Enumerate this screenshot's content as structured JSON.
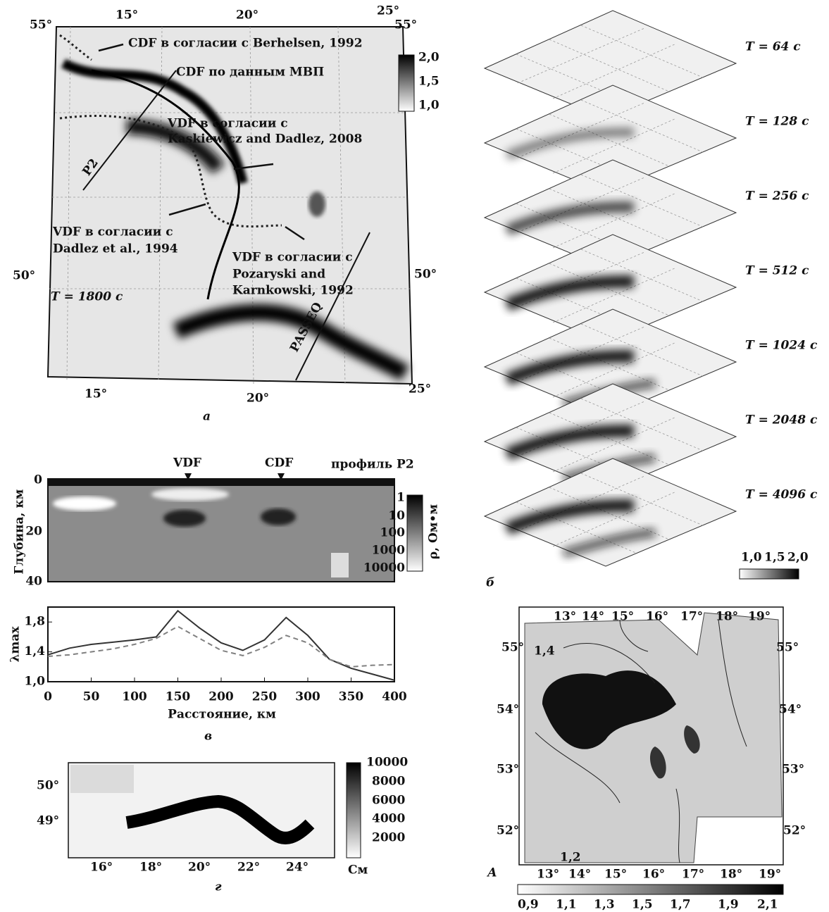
{
  "panel_a": {
    "letter": "а",
    "lon_top": [
      "15°",
      "20°",
      "25°"
    ],
    "lon_bottom": [
      "15°",
      "20°",
      "25°"
    ],
    "lat_left": [
      "55°",
      "50°"
    ],
    "lat_right": [
      "55°",
      "50°"
    ],
    "annotations": [
      "CDF в согласии с Berhelsen, 1992",
      "CDF по данным МВП",
      "VDF в согласии с",
      "Kaskiewicz and Dadlez, 2008",
      "VDF в согласии с",
      "Dadlez et al., 1994",
      "VDF в согласии с",
      "Pozaryski and",
      "Karnkowski, 1992"
    ],
    "period": "T = 1800 с",
    "profiles": [
      "P2",
      "PASSEQ"
    ],
    "colorbar_labels": [
      "2,0",
      "1,5",
      "1,0"
    ]
  },
  "panel_b": {
    "letter": "б",
    "periods": [
      "T = 64 с",
      "T = 128 с",
      "T = 256 с",
      "T = 512 с",
      "T = 1024 с",
      "T = 2048 с",
      "T = 4096 с"
    ],
    "colorbar_labels": [
      "1,0",
      "1,5",
      "2,0"
    ]
  },
  "panel_v_section": {
    "markers": [
      "VDF",
      "CDF"
    ],
    "title": "профиль Р2",
    "y_label": "Глубина, км",
    "yticks": [
      "0",
      "20",
      "40"
    ],
    "colorbar_labels": [
      "1",
      "10",
      "100",
      "1000",
      "10000"
    ],
    "colorbar_title": "ρ, Ом•м"
  },
  "chart_data": {
    "type": "line",
    "letter": "в",
    "x_label": "Расстояние, км",
    "y_label": "λmax",
    "x": [
      0,
      25,
      50,
      75,
      100,
      125,
      150,
      175,
      200,
      225,
      250,
      275,
      300,
      325,
      350,
      375,
      400
    ],
    "series": [
      {
        "color": "#333333",
        "dashed": false,
        "values": [
          1.36,
          1.45,
          1.5,
          1.53,
          1.56,
          1.6,
          1.95,
          1.72,
          1.52,
          1.42,
          1.56,
          1.86,
          1.62,
          1.3,
          1.18,
          1.1,
          1.02
        ]
      },
      {
        "color": "#808080",
        "dashed": true,
        "values": [
          1.34,
          1.36,
          1.4,
          1.44,
          1.5,
          1.58,
          1.74,
          1.58,
          1.42,
          1.35,
          1.46,
          1.62,
          1.52,
          1.3,
          1.2,
          1.22,
          1.23
        ]
      }
    ],
    "xlim": [
      0,
      400
    ],
    "ylim": [
      1.0,
      2.0
    ],
    "xticks": [
      0,
      50,
      100,
      150,
      200,
      250,
      300,
      350,
      400
    ],
    "yticks": [
      {
        "value": 1.0,
        "label": "1,0"
      },
      {
        "value": 1.4,
        "label": "1,4"
      },
      {
        "value": 1.8,
        "label": "1,8"
      }
    ]
  },
  "panel_g": {
    "letter": "г",
    "lon": [
      "16°",
      "18°",
      "20°",
      "22°",
      "24°"
    ],
    "lat": [
      "50°",
      "49°"
    ],
    "colorbar_labels": [
      "10000",
      "8000",
      "6000",
      "4000",
      "2000"
    ],
    "unit": "См"
  },
  "panel_A": {
    "letter": "А",
    "lon_top": [
      "13°",
      "14°",
      "15°",
      "16°",
      "17°",
      "18°",
      "19°"
    ],
    "lon_bottom": [
      "13°",
      "14°",
      "15°",
      "16°",
      "17°",
      "18°",
      "19°"
    ],
    "lat_left": [
      "55°",
      "54°",
      "53°",
      "52°"
    ],
    "lat_right": [
      "55°",
      "54°",
      "53°",
      "52°"
    ],
    "contour_labels": [
      "1,4",
      "1,2"
    ],
    "colorbar_labels": [
      "0,9",
      "1,1",
      "1,3",
      "1,5",
      "1,7",
      "1,9",
      "2,1"
    ]
  }
}
